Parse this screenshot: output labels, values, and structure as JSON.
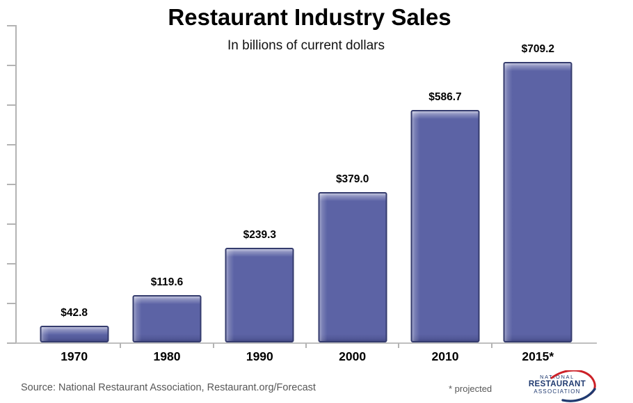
{
  "header": {
    "title": "Restaurant Industry Sales",
    "subtitle": "In billions of current dollars"
  },
  "chart_data": {
    "type": "bar",
    "title": "Restaurant Industry Sales",
    "subtitle": "In billions of current dollars",
    "categories": [
      "1970",
      "1980",
      "1990",
      "2000",
      "2010",
      "2015*"
    ],
    "values": [
      42.8,
      119.6,
      239.3,
      379.0,
      586.7,
      709.2
    ],
    "value_labels": [
      "$42.8",
      "$119.6",
      "$239.3",
      "$379.0",
      "$586.7",
      "$709.2"
    ],
    "xlabel": "",
    "ylabel": "",
    "ylim": [
      0,
      800
    ],
    "ytick_step": 100,
    "yticks_labeled": false,
    "grid": false,
    "legend": "none",
    "bar_color": "#5c63a5",
    "bar_border_color": "#343b6d",
    "axis_color": "#b3b3b3"
  },
  "footer": {
    "source": "Source: National Restaurant Association, Restaurant.org/Forecast",
    "note": "* projected"
  },
  "logo": {
    "line1": "NATIONAL",
    "line2": "RESTAURANT",
    "line3": "ASSOCIATION",
    "navy": "#203a70",
    "red": "#cc2027"
  }
}
